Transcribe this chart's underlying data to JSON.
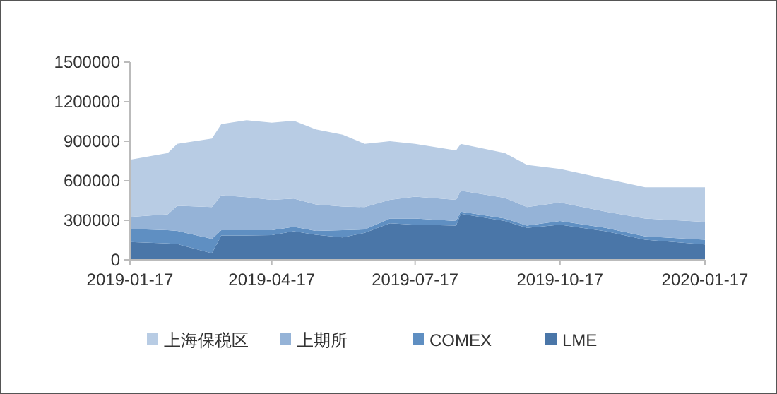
{
  "chart_data": {
    "type": "area",
    "stacked": true,
    "legend": "bottom",
    "x": [
      "2019-01-17",
      "2019-02-10",
      "2019-02-16",
      "2019-03-10",
      "2019-03-16",
      "2019-04-01",
      "2019-04-17",
      "2019-05-01",
      "2019-05-15",
      "2019-06-01",
      "2019-06-15",
      "2019-07-01",
      "2019-07-17",
      "2019-08-12",
      "2019-08-15",
      "2019-09-12",
      "2019-09-26",
      "2019-10-17",
      "2019-11-15",
      "2019-12-10",
      "2020-01-17"
    ],
    "xlim": [
      "2019-01-17",
      "2020-01-17"
    ],
    "xticks": [
      "2019-01-17",
      "2019-04-17",
      "2019-07-17",
      "2019-10-17",
      "2020-01-17"
    ],
    "ylim": [
      0,
      1500000
    ],
    "yticks": [
      0,
      300000,
      600000,
      900000,
      1200000,
      1500000
    ],
    "series": [
      {
        "name": "LME",
        "color": "#4a76a8",
        "values": [
          135000,
          125000,
          120000,
          50000,
          185000,
          185000,
          188000,
          217000,
          190000,
          170000,
          205000,
          277000,
          267000,
          260000,
          350000,
          295000,
          242000,
          267000,
          217000,
          153000,
          117000
        ]
      },
      {
        "name": "COMEX",
        "color": "#5f8fc2",
        "values": [
          100000,
          100000,
          100000,
          110000,
          40000,
          40000,
          37000,
          33000,
          30000,
          55000,
          25000,
          36000,
          46000,
          35000,
          15000,
          18000,
          18000,
          28000,
          25000,
          25000,
          36000
        ]
      },
      {
        "name": "上期所",
        "color": "#95b3d7",
        "values": [
          90000,
          120000,
          190000,
          240000,
          265000,
          250000,
          230000,
          215000,
          200000,
          180000,
          170000,
          142000,
          167000,
          160000,
          160000,
          157000,
          140000,
          140000,
          123000,
          135000,
          135000
        ]
      },
      {
        "name": "上海保税区",
        "color": "#b8cce4",
        "values": [
          435000,
          465000,
          470000,
          520000,
          540000,
          585000,
          585000,
          590000,
          570000,
          545000,
          480000,
          445000,
          400000,
          375000,
          355000,
          340000,
          320000,
          255000,
          250000,
          237000,
          262000
        ]
      }
    ]
  }
}
